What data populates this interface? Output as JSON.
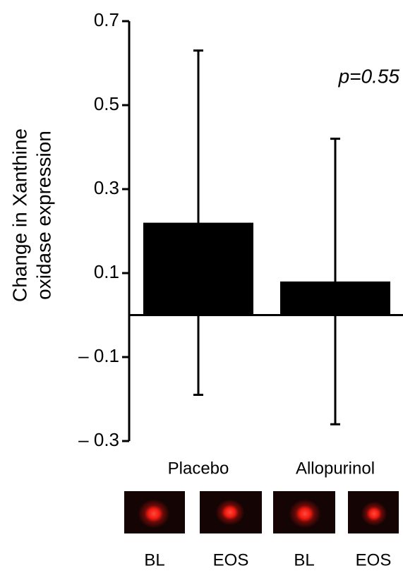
{
  "chart_data": {
    "type": "bar",
    "ylabel": [
      "Change in Xanthine",
      "oxidase expression"
    ],
    "annotation": "p=0.55",
    "categories": [
      "Placebo",
      "Allopurinol"
    ],
    "values": [
      0.22,
      0.08
    ],
    "errors": [
      0.41,
      0.34
    ],
    "color": "#000000",
    "ylim": [
      -0.3,
      0.7
    ],
    "yticks": [
      {
        "value": -0.3,
        "label": "– 0.3"
      },
      {
        "value": -0.1,
        "label": "– 0.1"
      },
      0.1,
      0.3,
      0.5,
      0.7
    ],
    "image_labels": [
      "BL",
      "EOS",
      "BL",
      "EOS"
    ]
  }
}
